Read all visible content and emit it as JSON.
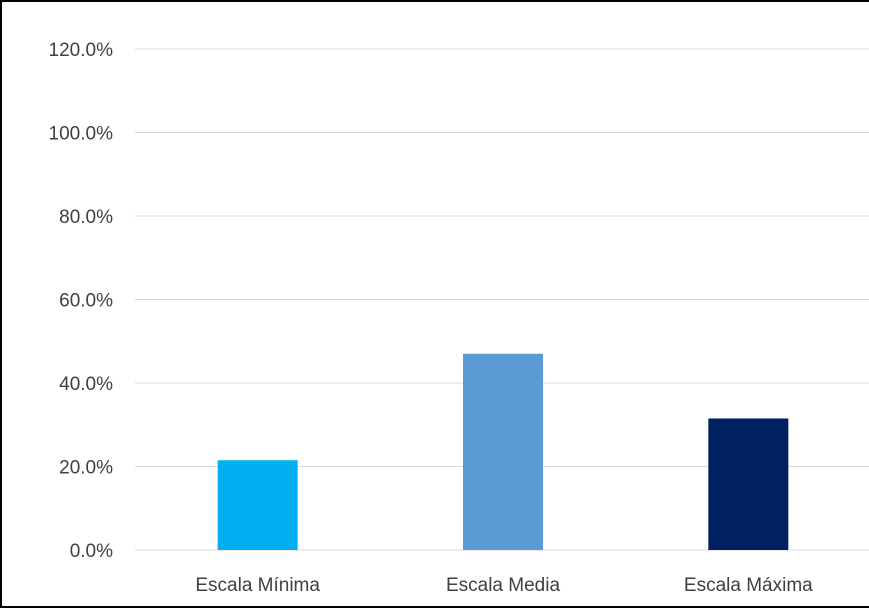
{
  "chart_data": {
    "type": "bar",
    "categories": [
      "Escala Mínima",
      "Escala Media",
      "Escala Máxima"
    ],
    "values": [
      21.5,
      47.0,
      31.5
    ],
    "colors": [
      "#00b0f0",
      "#5b9bd5",
      "#002060"
    ],
    "ylim": [
      0,
      120
    ],
    "yticks": [
      0,
      20,
      40,
      60,
      80,
      100,
      120
    ],
    "ytick_labels": [
      "0.0%",
      "20.0%",
      "40.0%",
      "60.0%",
      "80.0%",
      "100.0%",
      "120.0%"
    ],
    "grid": true,
    "legend": "none",
    "title": "",
    "xlabel": "",
    "ylabel": ""
  }
}
